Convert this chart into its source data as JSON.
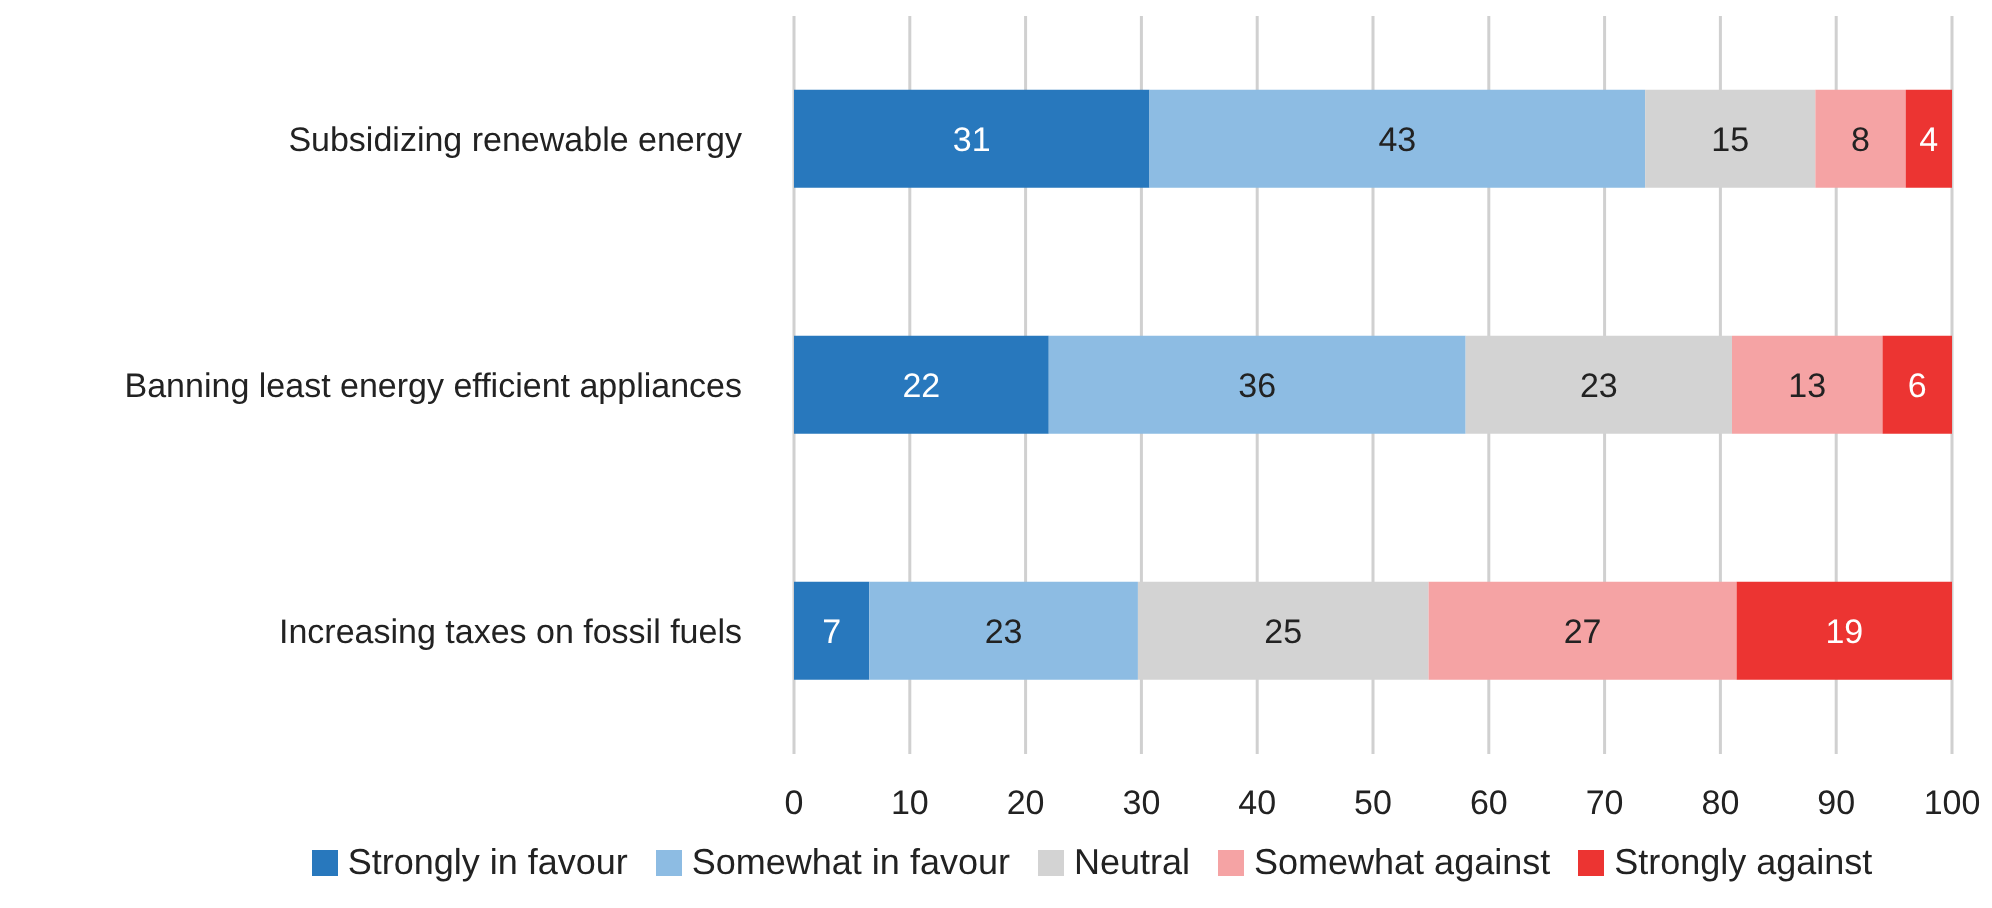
{
  "chart_data": {
    "type": "bar",
    "orientation": "horizontal",
    "stacked": true,
    "categories": [
      "Subsidizing renewable energy",
      "Banning least energy efficient appliances",
      "Increasing taxes on fossil fuels"
    ],
    "series": [
      {
        "name": "Strongly in favour",
        "color": "#2878bd",
        "values": [
          30.7,
          22,
          6.5
        ],
        "value_labels": [
          "31",
          "22",
          "7"
        ]
      },
      {
        "name": "Somewhat in favour",
        "color": "#8dbce3",
        "values": [
          42.8,
          36,
          23.2
        ],
        "value_labels": [
          "43",
          "36",
          "23"
        ]
      },
      {
        "name": "Neutral",
        "color": "#d3d3d3",
        "values": [
          14.7,
          23,
          25.1
        ],
        "value_labels": [
          "15",
          "23",
          "25"
        ]
      },
      {
        "name": "Somewhat against",
        "color": "#f5a3a4",
        "values": [
          7.8,
          13,
          26.6
        ],
        "value_labels": [
          "8",
          "13",
          "27"
        ]
      },
      {
        "name": "Strongly against",
        "color": "#ec3432",
        "values": [
          4,
          6,
          18.6
        ],
        "value_labels": [
          "4",
          "6",
          "19"
        ]
      }
    ],
    "xlim": [
      0,
      100
    ],
    "xticks": [
      0,
      10,
      20,
      30,
      40,
      50,
      60,
      70,
      80,
      90,
      100
    ],
    "grid": "x",
    "legend": "bottom"
  }
}
